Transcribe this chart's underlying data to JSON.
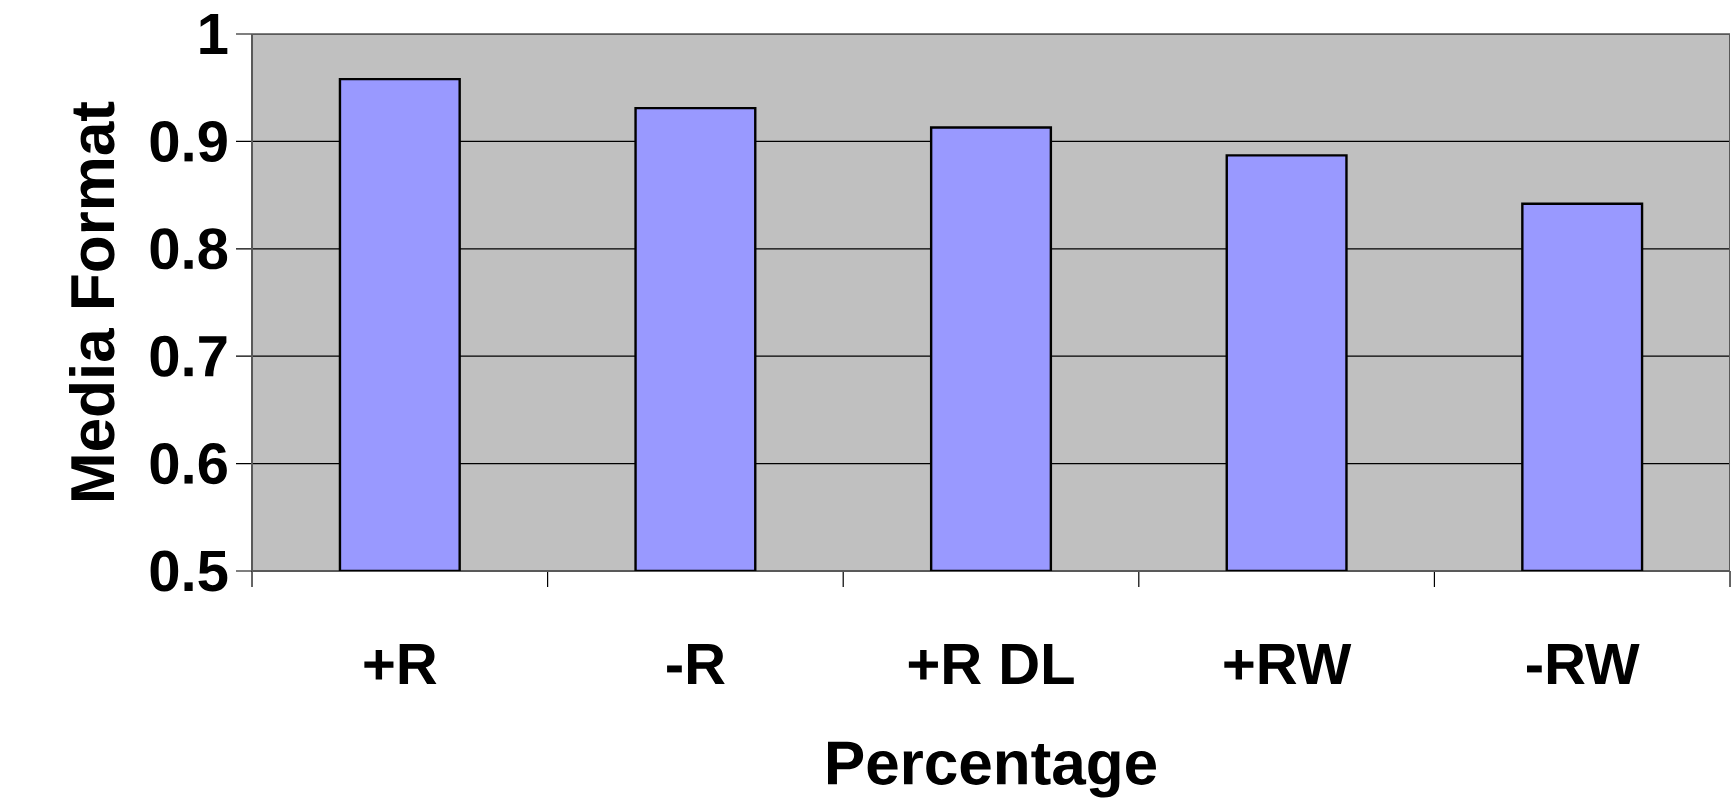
{
  "chart_data": {
    "type": "bar",
    "xlabel": "Percentage",
    "ylabel": "Media Format",
    "categories": [
      "+R",
      "-R",
      "+R DL",
      "+RW",
      "-RW"
    ],
    "values": [
      0.958,
      0.931,
      0.913,
      0.887,
      0.842
    ],
    "color": "#9999ff",
    "ylim": [
      0.5,
      1
    ],
    "yticks": [
      0.5,
      0.6,
      0.7,
      0.8,
      0.9,
      1
    ],
    "grid": "y"
  }
}
